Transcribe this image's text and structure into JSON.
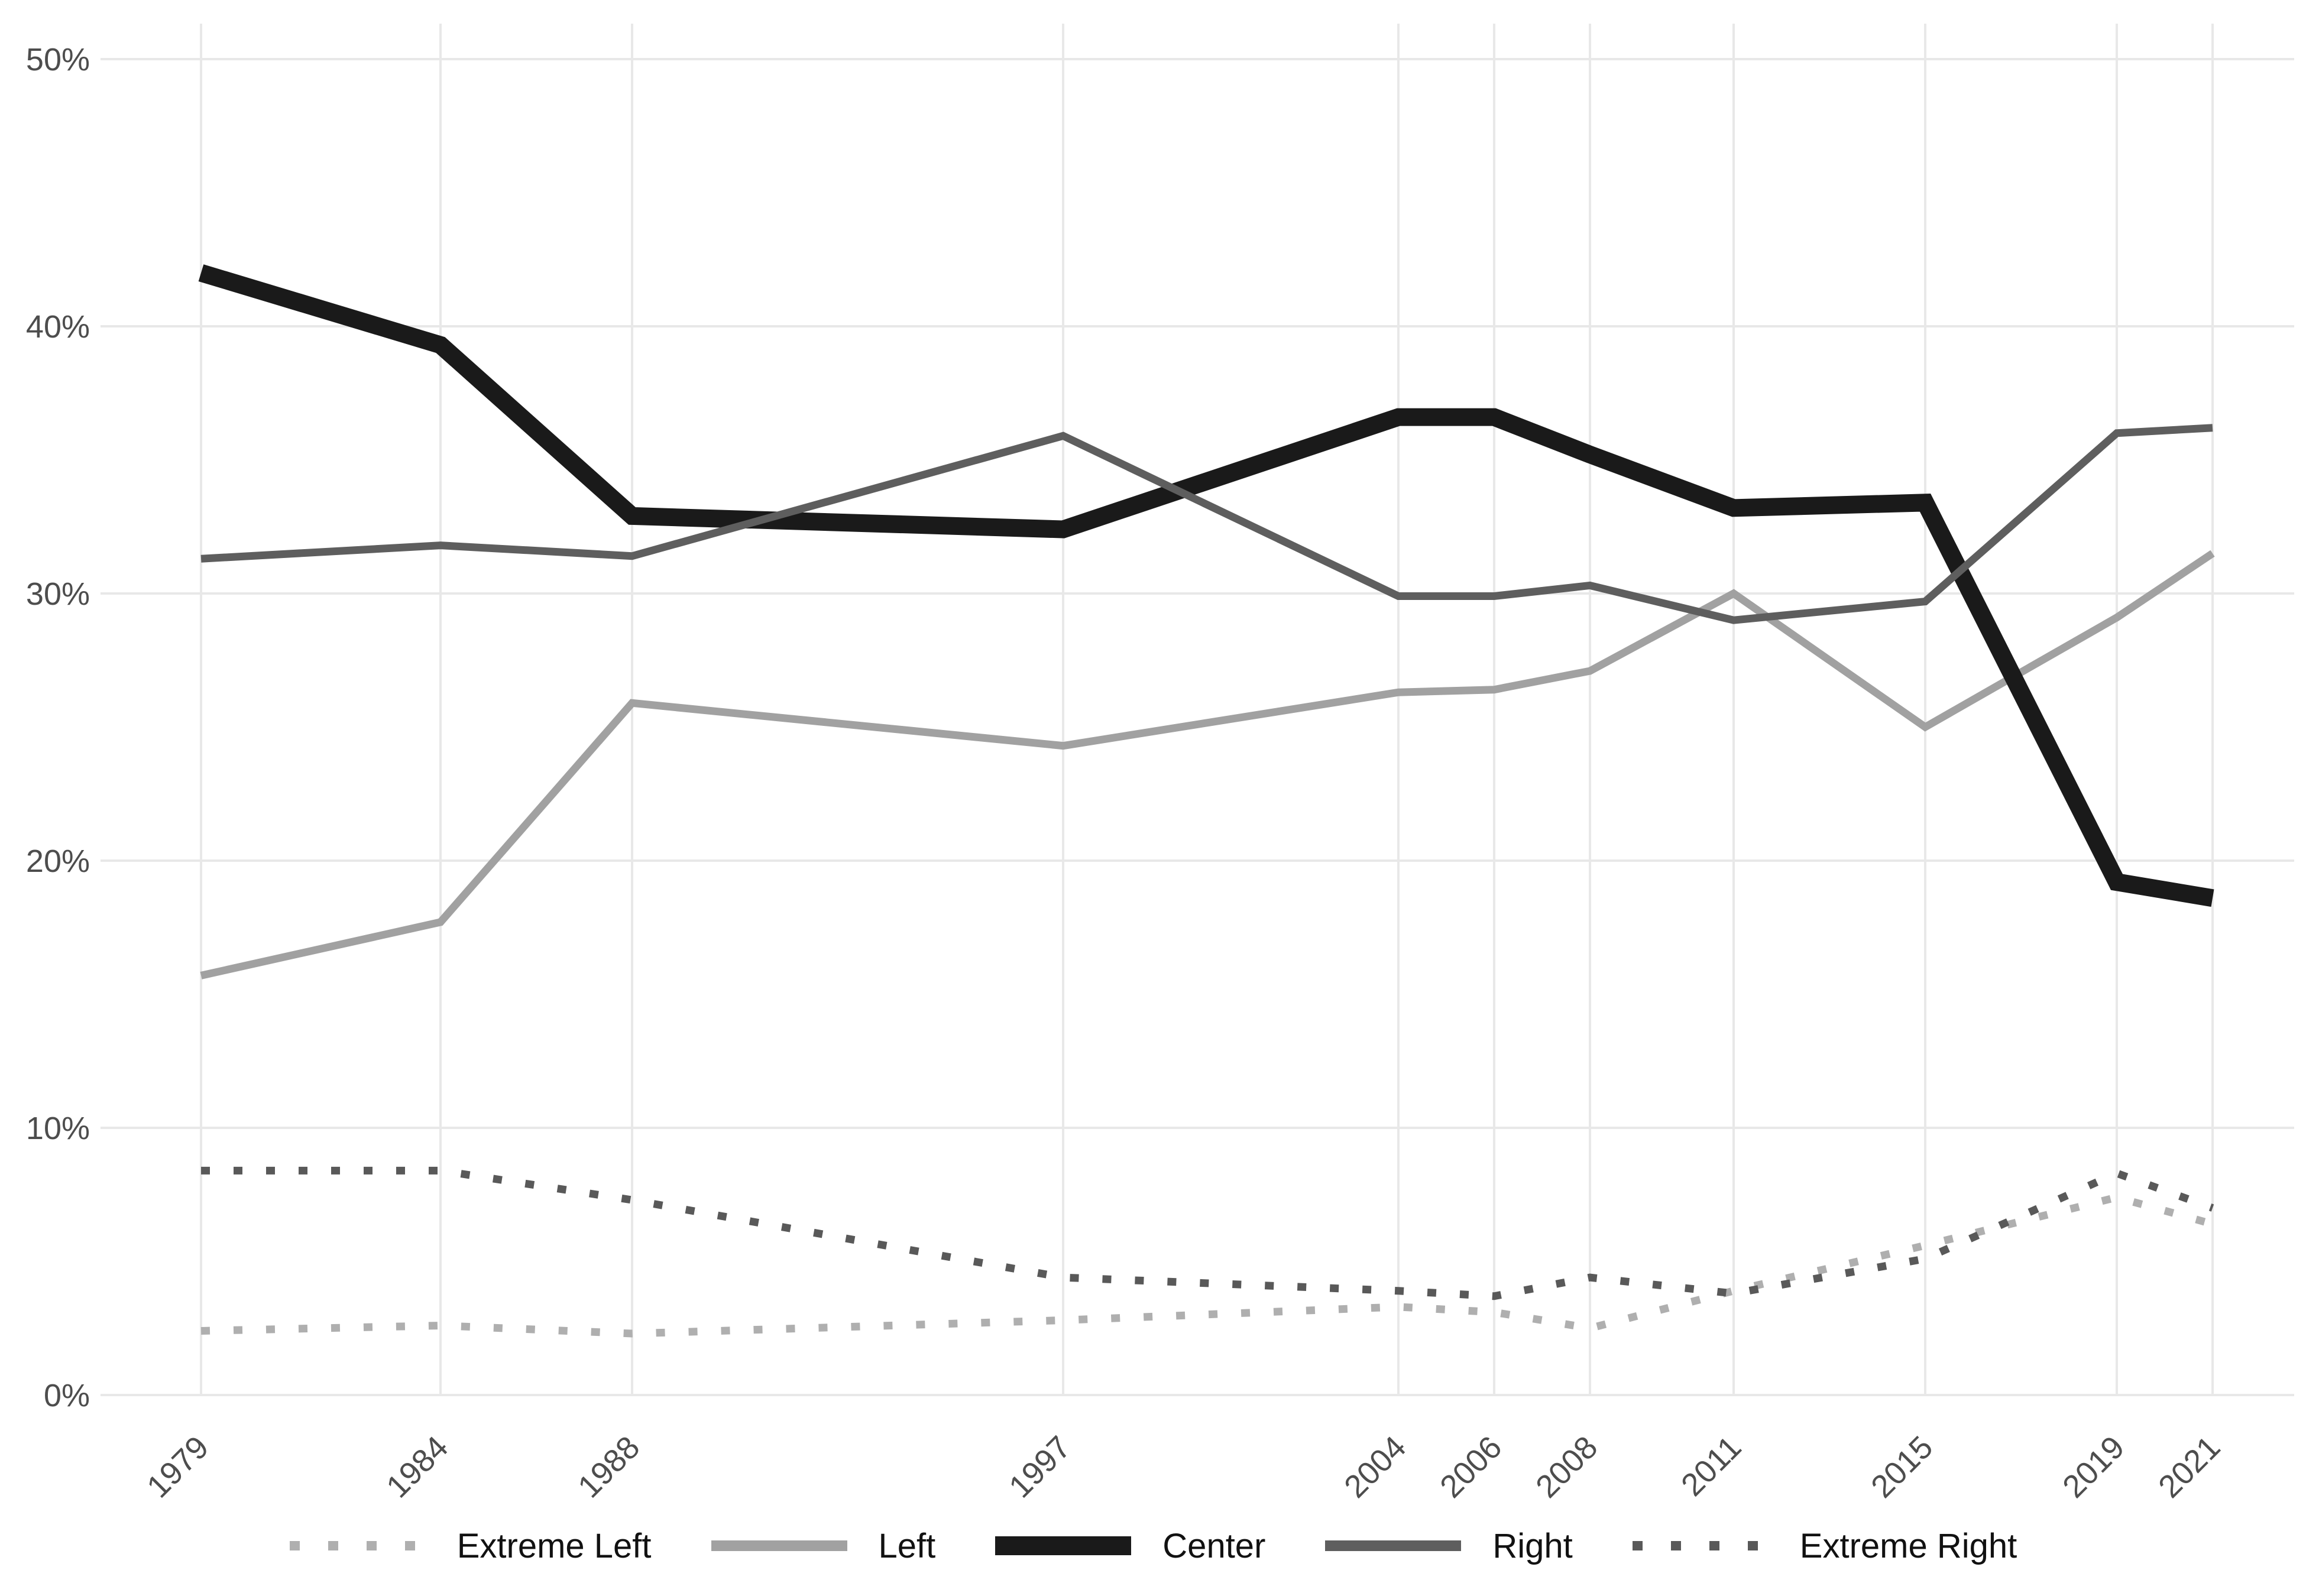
{
  "chart_data": {
    "type": "line",
    "x": [
      1979,
      1984,
      1988,
      1997,
      2004,
      2006,
      2008,
      2011,
      2015,
      2019,
      2021
    ],
    "x_tick_labels": [
      "1979",
      "1984",
      "1988",
      "1997",
      "2004",
      "2006",
      "2008",
      "2011",
      "2015",
      "2019",
      "2021"
    ],
    "y_ticks": [
      0,
      10,
      20,
      30,
      40,
      50
    ],
    "y_tick_labels": [
      "0%",
      "10%",
      "20%",
      "30%",
      "40%",
      "50%"
    ],
    "ylim": [
      0,
      51
    ],
    "xlim": [
      1977,
      2023
    ],
    "title": "",
    "xlabel": "",
    "ylabel": "",
    "grid": true,
    "legend_position": "bottom",
    "series": [
      {
        "name": "Extreme Left",
        "style": "dotted",
        "color": "#afafaf",
        "width": 13,
        "values": [
          2.4,
          2.6,
          2.3,
          2.8,
          3.3,
          3.1,
          2.5,
          3.9,
          5.6,
          7.4,
          6.4
        ]
      },
      {
        "name": "Left",
        "style": "solid",
        "color": "#a1a1a1",
        "width": 13,
        "values": [
          15.7,
          17.7,
          25.9,
          24.3,
          26.3,
          26.4,
          27.1,
          30.0,
          25.0,
          29.1,
          31.5
        ]
      },
      {
        "name": "Center",
        "style": "solid",
        "color": "#1a1a1a",
        "width": 30,
        "values": [
          42.0,
          39.3,
          32.9,
          32.4,
          36.6,
          36.6,
          35.2,
          33.2,
          33.4,
          19.2,
          18.6
        ]
      },
      {
        "name": "Right",
        "style": "solid",
        "color": "#5e5e5e",
        "width": 13,
        "values": [
          31.3,
          31.8,
          31.4,
          35.9,
          29.9,
          29.9,
          30.3,
          29.0,
          29.7,
          36.0,
          36.2
        ]
      },
      {
        "name": "Extreme Right",
        "style": "dotted",
        "color": "#595959",
        "width": 13,
        "values": [
          8.4,
          8.4,
          7.3,
          4.4,
          3.9,
          3.7,
          4.4,
          3.8,
          5.1,
          8.3,
          7.0
        ]
      }
    ],
    "axis_text_color": "#4d4d4d",
    "grid_color": "#e8e8e8"
  },
  "legend": {
    "items": [
      {
        "label": "Extreme Left"
      },
      {
        "label": "Left"
      },
      {
        "label": "Center"
      },
      {
        "label": "Right"
      },
      {
        "label": "Extreme Right"
      }
    ]
  }
}
